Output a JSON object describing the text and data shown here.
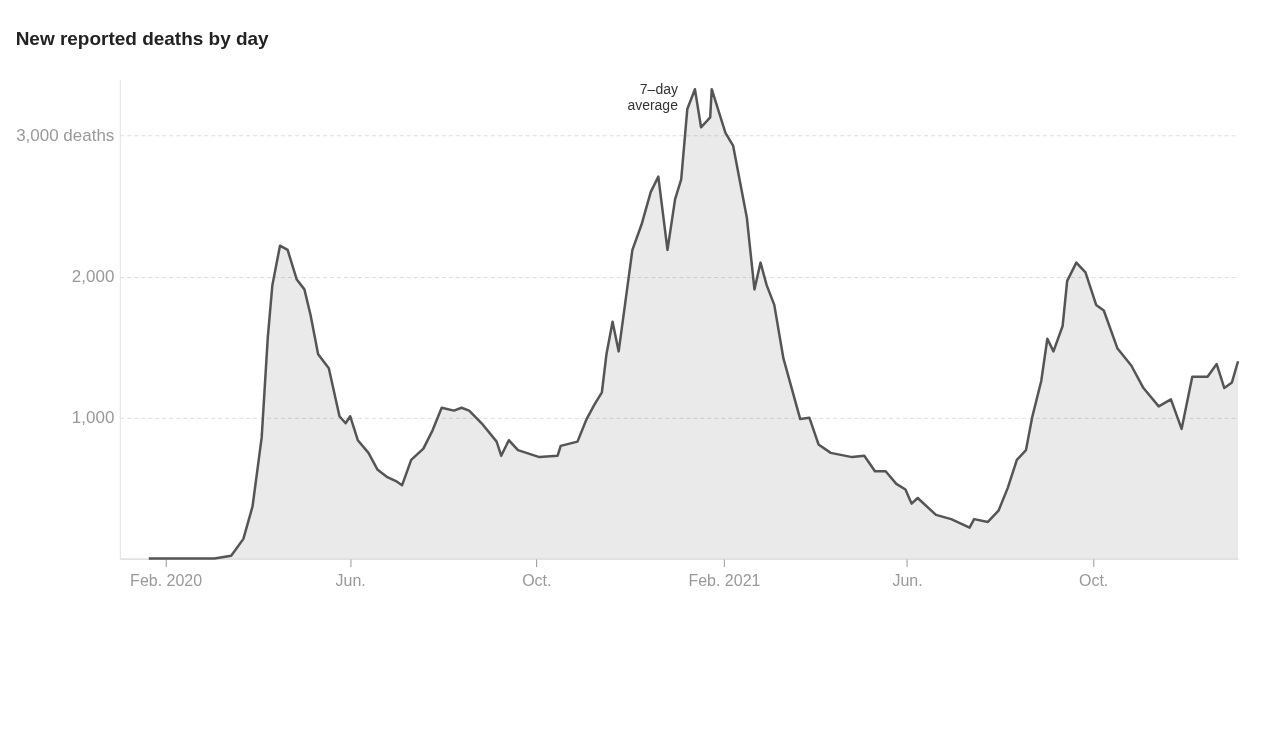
{
  "chart_data": {
    "type": "area",
    "title": "New reported deaths by day",
    "x": [
      "2020-01-21",
      "2020-03-04",
      "2020-03-15",
      "2020-03-23",
      "2020-03-29",
      "2020-04-04",
      "2020-04-08",
      "2020-04-11",
      "2020-04-16",
      "2020-04-21",
      "2020-04-27",
      "2020-05-02",
      "2020-05-06",
      "2020-05-11",
      "2020-05-18",
      "2020-05-25",
      "2020-05-29",
      "2020-06-01",
      "2020-06-06",
      "2020-06-13",
      "2020-06-19",
      "2020-06-25",
      "2020-07-01",
      "2020-07-05",
      "2020-07-11",
      "2020-07-19",
      "2020-07-25",
      "2020-07-31",
      "2020-08-08",
      "2020-08-13",
      "2020-08-18",
      "2020-08-27",
      "2020-09-05",
      "2020-09-08",
      "2020-09-13",
      "2020-09-19",
      "2020-10-03",
      "2020-10-15",
      "2020-10-17",
      "2020-10-28",
      "2020-11-03",
      "2020-11-08",
      "2020-11-13",
      "2020-11-16",
      "2020-11-20",
      "2020-11-24",
      "2020-12-03",
      "2020-12-09",
      "2020-12-15",
      "2020-12-20",
      "2020-12-26",
      "2020-12-31",
      "2021-01-04",
      "2021-01-08",
      "2021-01-13",
      "2021-01-17",
      "2021-01-23",
      "2021-01-24",
      "2021-02-02",
      "2021-02-07",
      "2021-02-16",
      "2021-02-21",
      "2021-02-25",
      "2021-03-01",
      "2021-03-06",
      "2021-03-12",
      "2021-03-23",
      "2021-03-29",
      "2021-04-04",
      "2021-04-12",
      "2021-04-26",
      "2021-05-04",
      "2021-05-11",
      "2021-05-18",
      "2021-05-25",
      "2021-05-31",
      "2021-06-04",
      "2021-06-08",
      "2021-06-20",
      "2021-06-30",
      "2021-07-12",
      "2021-07-15",
      "2021-07-24",
      "2021-07-31",
      "2021-08-06",
      "2021-08-12",
      "2021-08-18",
      "2021-08-22",
      "2021-08-28",
      "2021-09-01",
      "2021-09-05",
      "2021-09-11",
      "2021-09-14",
      "2021-09-20",
      "2021-09-26",
      "2021-10-03",
      "2021-10-08",
      "2021-10-17",
      "2021-10-26",
      "2021-11-03",
      "2021-11-13",
      "2021-11-21",
      "2021-11-28",
      "2021-12-05",
      "2021-12-15",
      "2021-12-21",
      "2021-12-26",
      "2021-12-31",
      "2022-01-04"
    ],
    "series": [
      {
        "color": "#555555",
        "values": [
          0,
          0,
          20,
          140,
          370,
          860,
          1570,
          1940,
          2220,
          2190,
          1980,
          1910,
          1730,
          1450,
          1350,
          1010,
          960,
          1010,
          840,
          750,
          630,
          580,
          550,
          520,
          700,
          780,
          910,
          1070,
          1050,
          1070,
          1050,
          950,
          830,
          730,
          840,
          770,
          720,
          730,
          800,
          830,
          990,
          1090,
          1180,
          1450,
          1680,
          1470,
          2190,
          2370,
          2600,
          2710,
          2190,
          2550,
          2690,
          3190,
          3330,
          3060,
          3130,
          3330,
          3020,
          2930,
          2420,
          1910,
          2100,
          1940,
          1800,
          1420,
          990,
          1000,
          810,
          750,
          720,
          730,
          620,
          620,
          530,
          490,
          390,
          430,
          310,
          280,
          220,
          280,
          260,
          340,
          500,
          700,
          770,
          1000,
          1260,
          1560,
          1470,
          1650,
          1970,
          2100,
          2030,
          1800,
          1760,
          1490,
          1370,
          1210,
          1080,
          1130,
          920,
          1290,
          1290,
          1380,
          1210,
          1250,
          1400
        ]
      }
    ],
    "xlim": [
      "2020-01-02",
      "2022-01-04"
    ],
    "xticks": [
      {
        "value": "2020-02-01",
        "label": "Feb. 2020"
      },
      {
        "value": "2020-06-01",
        "label": "Jun."
      },
      {
        "value": "2020-10-01",
        "label": "Oct."
      },
      {
        "value": "2021-02-01",
        "label": "Feb. 2021"
      },
      {
        "value": "2021-06-01",
        "label": "Jun."
      },
      {
        "value": "2021-10-01",
        "label": "Oct."
      }
    ],
    "ylim": [
      0,
      3400
    ],
    "yticks": [
      {
        "value": 1000,
        "label": "1,000"
      },
      {
        "value": 2000,
        "label": "2,000"
      },
      {
        "value": 3000,
        "label": "3,000 deaths"
      }
    ],
    "grid": "y",
    "annotations": [
      {
        "text": "7–day average",
        "x": "2021-01-11",
        "y": 3331
      }
    ]
  }
}
